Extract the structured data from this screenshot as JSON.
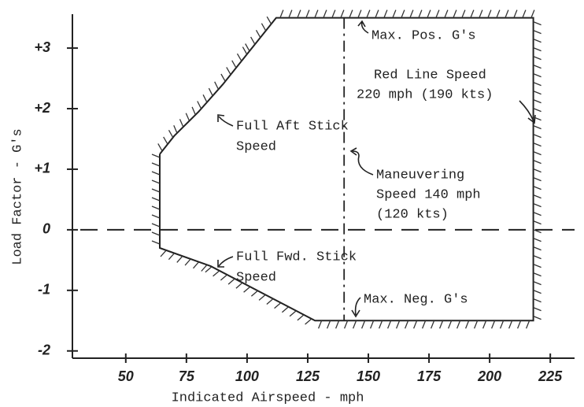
{
  "chart_data": {
    "type": "line",
    "xlabel": "Indicated Airspeed - mph",
    "ylabel": "Load Factor - G's",
    "x": [
      64,
      70,
      80,
      90,
      100,
      112,
      218,
      218,
      128,
      85,
      64,
      64
    ],
    "values": [
      1.25,
      1.55,
      1.95,
      2.4,
      2.9,
      3.5,
      3.5,
      -1.5,
      -1.5,
      -0.6,
      -0.3,
      1.25
    ],
    "color": "#222222",
    "xlim": [
      28,
      235
    ],
    "ylim": [
      -2.12,
      3.56
    ],
    "xticks": [
      50,
      75,
      100,
      125,
      150,
      175,
      200,
      225
    ],
    "yticks": [
      {
        "value": 3,
        "label": "+3"
      },
      {
        "value": 2,
        "label": "+2"
      },
      {
        "value": 1,
        "label": "+1"
      },
      0,
      -1,
      -2
    ],
    "vlines": [
      140
    ],
    "hlines": [
      0
    ],
    "annotations": [
      "Max. Pos. G's",
      "Red Line Speed",
      "220 mph (190 kts)",
      "Full Aft Stick",
      "Speed",
      "Maneuvering",
      "Speed 140 mph",
      "(120 kts)",
      "Full Fwd. Stick",
      "Speed",
      "Max. Neg. G's"
    ]
  }
}
